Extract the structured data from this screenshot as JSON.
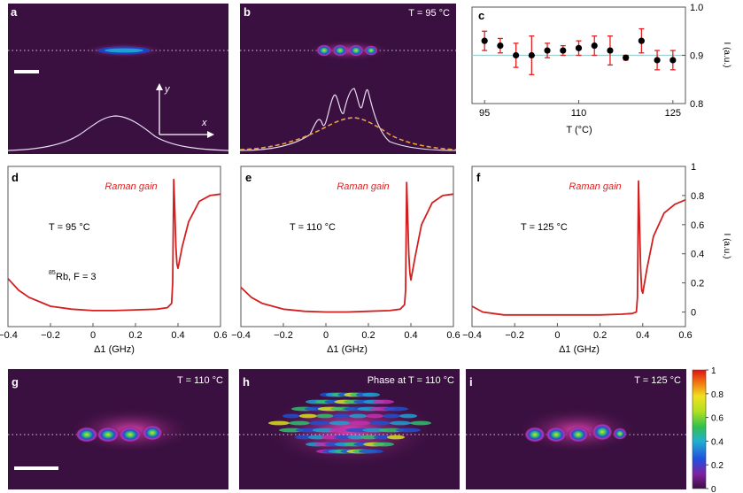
{
  "colors": {
    "panel_bg": "#3a1040",
    "red_curve": "#d22020",
    "errorbar": "#e02020",
    "marker": "#000000",
    "ref_line": "#9ecfcf",
    "orange_dash": "#e8a040",
    "white_profile": "#e8dcf0",
    "dotted_line": "#cfcfd8",
    "raman_label": "#e02020"
  },
  "panels": {
    "a": {
      "label": "a",
      "axis_y": "y",
      "axis_x": "x"
    },
    "b": {
      "label": "b",
      "temp": "T = 95 °C"
    },
    "c": {
      "label": "c",
      "xlabel": "T (°C)",
      "ylabel": "I (a.u.)"
    },
    "d": {
      "label": "d",
      "raman": "Raman gain",
      "temp": "T = 95 °C",
      "species_sup": "85",
      "species": "Rb, F = 3",
      "xlabel": "Δ1 (GHz)"
    },
    "e": {
      "label": "e",
      "raman": "Raman gain",
      "temp": "T = 110 °C",
      "xlabel": "Δ1 (GHz)"
    },
    "f": {
      "label": "f",
      "raman": "Raman gain",
      "temp": "T = 125 °C",
      "xlabel": "Δ1 (GHz)",
      "ylabel": "I (a.u.)"
    },
    "g": {
      "label": "g",
      "temp": "T = 110 °C"
    },
    "h": {
      "label": "h",
      "temp": "Phase at T = 110 °C"
    },
    "i": {
      "label": "i",
      "temp": "T = 125 °C"
    }
  },
  "colorbar": {
    "ticks": [
      "1",
      "0.8",
      "0.6",
      "0.4",
      "0.2",
      "0"
    ]
  },
  "chart_data": [
    {
      "panel": "c",
      "type": "scatter",
      "xlabel": "T (°C)",
      "ylabel": "I (a.u.)",
      "xlim": [
        93,
        127
      ],
      "ylim": [
        0.8,
        1.0
      ],
      "xticks": [
        "95",
        "110",
        "125"
      ],
      "yticks": [
        "0.8",
        "0.9",
        "1.0"
      ],
      "reference_line": 0.9,
      "x": [
        95,
        97.5,
        100,
        102.5,
        105,
        107.5,
        110,
        112.5,
        115,
        117.5,
        120,
        122.5,
        125
      ],
      "y": [
        0.93,
        0.92,
        0.9,
        0.9,
        0.91,
        0.91,
        0.915,
        0.92,
        0.91,
        0.895,
        0.93,
        0.89,
        0.89
      ],
      "yerr": [
        0.02,
        0.015,
        0.025,
        0.04,
        0.015,
        0.01,
        0.015,
        0.02,
        0.03,
        0.005,
        0.025,
        0.02,
        0.02
      ]
    },
    {
      "panel": "d",
      "type": "line",
      "xlabel": "Δ1 (GHz)",
      "xlim": [
        -0.4,
        0.6
      ],
      "ylim": [
        -0.1,
        1.0
      ],
      "xticks": [
        "-0.4",
        "-0.2",
        "0",
        "0.2",
        "0.4",
        "0.6"
      ],
      "x": [
        -0.4,
        -0.35,
        -0.3,
        -0.25,
        -0.2,
        -0.1,
        0,
        0.1,
        0.2,
        0.3,
        0.35,
        0.37,
        0.375,
        0.38,
        0.385,
        0.39,
        0.395,
        0.4,
        0.42,
        0.45,
        0.5,
        0.55,
        0.6
      ],
      "y": [
        0.23,
        0.15,
        0.1,
        0.07,
        0.04,
        0.02,
        0.01,
        0.01,
        0.015,
        0.02,
        0.03,
        0.06,
        0.2,
        0.91,
        0.7,
        0.45,
        0.33,
        0.3,
        0.45,
        0.62,
        0.76,
        0.8,
        0.81
      ]
    },
    {
      "panel": "e",
      "type": "line",
      "xlabel": "Δ1 (GHz)",
      "xlim": [
        -0.4,
        0.6
      ],
      "ylim": [
        -0.1,
        1.0
      ],
      "xticks": [
        "-0.4",
        "-0.2",
        "0",
        "0.2",
        "0.4",
        "0.6"
      ],
      "x": [
        -0.4,
        -0.35,
        -0.3,
        -0.25,
        -0.2,
        -0.1,
        0,
        0.1,
        0.2,
        0.3,
        0.35,
        0.37,
        0.375,
        0.38,
        0.385,
        0.39,
        0.395,
        0.4,
        0.42,
        0.45,
        0.5,
        0.55,
        0.6
      ],
      "y": [
        0.17,
        0.1,
        0.06,
        0.04,
        0.02,
        0.005,
        0.0,
        0.0,
        0.005,
        0.01,
        0.02,
        0.05,
        0.15,
        0.89,
        0.65,
        0.4,
        0.27,
        0.22,
        0.38,
        0.6,
        0.75,
        0.8,
        0.81
      ]
    },
    {
      "panel": "f",
      "type": "line",
      "xlabel": "Δ1 (GHz)",
      "ylabel": "I (a.u.)",
      "xlim": [
        -0.4,
        0.6
      ],
      "ylim": [
        -0.1,
        1.0
      ],
      "xticks": [
        "-0.4",
        "-0.2",
        "0",
        "0.2",
        "0.4",
        "0.6"
      ],
      "yticks": [
        "0",
        "0.2",
        "0.4",
        "0.6",
        "0.8",
        "1"
      ],
      "x": [
        -0.4,
        -0.35,
        -0.3,
        -0.25,
        -0.2,
        -0.1,
        0,
        0.1,
        0.2,
        0.3,
        0.35,
        0.37,
        0.375,
        0.38,
        0.385,
        0.39,
        0.395,
        0.4,
        0.42,
        0.45,
        0.5,
        0.55,
        0.6
      ],
      "y": [
        0.04,
        0.0,
        -0.01,
        -0.02,
        -0.02,
        -0.02,
        -0.02,
        -0.02,
        -0.02,
        -0.015,
        -0.01,
        0.0,
        0.1,
        0.9,
        0.6,
        0.3,
        0.15,
        0.13,
        0.3,
        0.52,
        0.68,
        0.74,
        0.77
      ]
    }
  ]
}
